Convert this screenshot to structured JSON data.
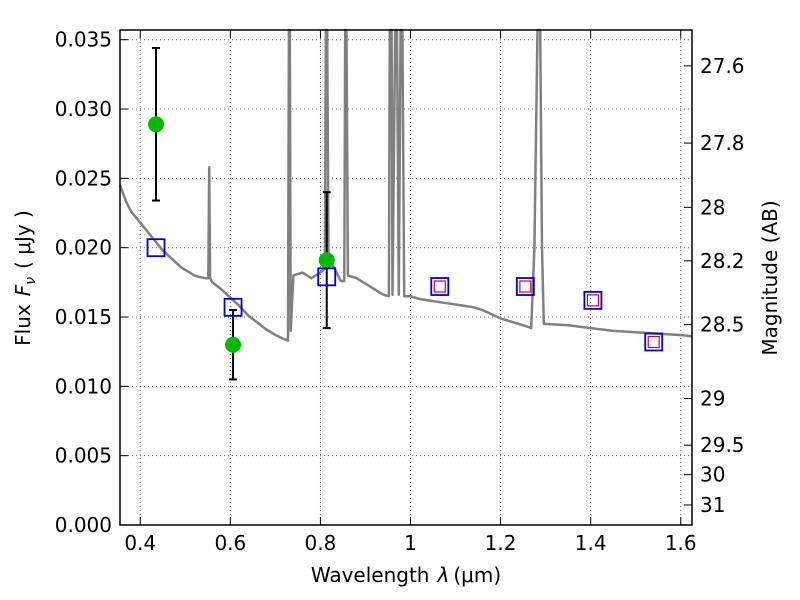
{
  "chart_data": {
    "type": "line",
    "xlabel": "Wavelength",
    "xlabel_symbol": "λ",
    "xlabel_unit": "(μm)",
    "ylabel": "Flux",
    "ylabel_symbol": "F",
    "ylabel_sub": "ν",
    "ylabel_unit": "( μJy )",
    "y2label": "Magnitude (AB)",
    "xlim": [
      0.355,
      1.625
    ],
    "ylim": [
      0.0,
      0.0357
    ],
    "grid": true,
    "x_ticks": [
      {
        "value": 0.4,
        "label": "0.4"
      },
      {
        "value": 0.6,
        "label": "0.6"
      },
      {
        "value": 0.8,
        "label": "0.8"
      },
      {
        "value": 1.0,
        "label": "1"
      },
      {
        "value": 1.2,
        "label": "1.2"
      },
      {
        "value": 1.4,
        "label": "1.4"
      },
      {
        "value": 1.6,
        "label": "1.6"
      }
    ],
    "y_ticks": [
      {
        "value": 0.0,
        "label": "0.000"
      },
      {
        "value": 0.005,
        "label": "0.005"
      },
      {
        "value": 0.01,
        "label": "0.010"
      },
      {
        "value": 0.015,
        "label": "0.015"
      },
      {
        "value": 0.02,
        "label": "0.020"
      },
      {
        "value": 0.025,
        "label": "0.025"
      },
      {
        "value": 0.03,
        "label": "0.030"
      },
      {
        "value": 0.035,
        "label": "0.035"
      }
    ],
    "y2_ticks": [
      {
        "value": 27.6,
        "label": "27.6"
      },
      {
        "value": 27.8,
        "label": "27.8"
      },
      {
        "value": 28.0,
        "label": "28"
      },
      {
        "value": 28.2,
        "label": "28.2"
      },
      {
        "value": 28.5,
        "label": "28.5"
      },
      {
        "value": 29.0,
        "label": "29"
      },
      {
        "value": 29.5,
        "label": "29.5"
      },
      {
        "value": 30.0,
        "label": "30"
      },
      {
        "value": 31.0,
        "label": "31"
      }
    ],
    "series": [
      {
        "name": "model spectrum",
        "kind": "line",
        "color": "#808080",
        "points": [
          [
            0.355,
            0.0245
          ],
          [
            0.37,
            0.0232
          ],
          [
            0.38,
            0.0226
          ],
          [
            0.39,
            0.0222
          ],
          [
            0.4,
            0.0218
          ],
          [
            0.41,
            0.0214
          ],
          [
            0.42,
            0.021
          ],
          [
            0.43,
            0.0206
          ],
          [
            0.44,
            0.0202
          ],
          [
            0.45,
            0.0198
          ],
          [
            0.46,
            0.0195
          ],
          [
            0.47,
            0.0192
          ],
          [
            0.48,
            0.0189
          ],
          [
            0.49,
            0.0186
          ],
          [
            0.5,
            0.0184
          ],
          [
            0.51,
            0.0182
          ],
          [
            0.52,
            0.018
          ],
          [
            0.53,
            0.0179
          ],
          [
            0.545,
            0.0178
          ],
          [
            0.551,
            0.0178
          ],
          [
            0.553,
            0.0258
          ],
          [
            0.555,
            0.0178
          ],
          [
            0.56,
            0.0175
          ],
          [
            0.58,
            0.017
          ],
          [
            0.6,
            0.0164
          ],
          [
            0.62,
            0.0158
          ],
          [
            0.64,
            0.0151
          ],
          [
            0.66,
            0.0146
          ],
          [
            0.68,
            0.0141
          ],
          [
            0.7,
            0.0137
          ],
          [
            0.72,
            0.0134
          ],
          [
            0.728,
            0.0133
          ],
          [
            0.73,
            0.0357
          ],
          [
            0.732,
            0.0357
          ],
          [
            0.734,
            0.014
          ],
          [
            0.74,
            0.018
          ],
          [
            0.76,
            0.0182
          ],
          [
            0.78,
            0.0178
          ],
          [
            0.8,
            0.0182
          ],
          [
            0.81,
            0.0185
          ],
          [
            0.812,
            0.0357
          ],
          [
            0.815,
            0.0357
          ],
          [
            0.818,
            0.019
          ],
          [
            0.83,
            0.0186
          ],
          [
            0.845,
            0.0176
          ],
          [
            0.853,
            0.0176
          ],
          [
            0.855,
            0.0357
          ],
          [
            0.858,
            0.0357
          ],
          [
            0.861,
            0.018
          ],
          [
            0.88,
            0.0178
          ],
          [
            0.9,
            0.0174
          ],
          [
            0.92,
            0.017
          ],
          [
            0.94,
            0.0166
          ],
          [
            0.952,
            0.0165
          ],
          [
            0.954,
            0.0357
          ],
          [
            0.958,
            0.0357
          ],
          [
            0.96,
            0.0166
          ],
          [
            0.966,
            0.0357
          ],
          [
            0.97,
            0.0357
          ],
          [
            0.974,
            0.0166
          ],
          [
            0.978,
            0.0357
          ],
          [
            0.982,
            0.0357
          ],
          [
            0.986,
            0.0165
          ],
          [
            1.0,
            0.0165
          ],
          [
            1.02,
            0.0163
          ],
          [
            1.04,
            0.0162
          ],
          [
            1.06,
            0.0161
          ],
          [
            1.08,
            0.016
          ],
          [
            1.1,
            0.0159
          ],
          [
            1.12,
            0.0158
          ],
          [
            1.14,
            0.0157
          ],
          [
            1.16,
            0.0155
          ],
          [
            1.18,
            0.0152
          ],
          [
            1.2,
            0.0149
          ],
          [
            1.22,
            0.0147
          ],
          [
            1.24,
            0.0145
          ],
          [
            1.26,
            0.0143
          ],
          [
            1.268,
            0.0142
          ],
          [
            1.275,
            0.02
          ],
          [
            1.282,
            0.0357
          ],
          [
            1.288,
            0.0357
          ],
          [
            1.292,
            0.02
          ],
          [
            1.296,
            0.0145
          ],
          [
            1.3,
            0.0145
          ],
          [
            1.35,
            0.0144
          ],
          [
            1.4,
            0.0142
          ],
          [
            1.45,
            0.014
          ],
          [
            1.5,
            0.0139
          ],
          [
            1.55,
            0.0138
          ],
          [
            1.6,
            0.0137
          ],
          [
            1.625,
            0.0136
          ]
        ]
      }
    ],
    "observed": [
      {
        "x": 0.435,
        "y": 0.0289,
        "yerr_low": 0.0234,
        "yerr_high": 0.0344
      },
      {
        "x": 0.606,
        "y": 0.013,
        "yerr_low": 0.0105,
        "yerr_high": 0.0155
      },
      {
        "x": 0.814,
        "y": 0.0191,
        "yerr_low": 0.0142,
        "yerr_high": 0.024
      }
    ],
    "model_photometry_blue": [
      {
        "x": 0.435,
        "y": 0.02
      },
      {
        "x": 0.606,
        "y": 0.0157
      },
      {
        "x": 0.814,
        "y": 0.0179
      },
      {
        "x": 1.065,
        "y": 0.0172
      },
      {
        "x": 1.255,
        "y": 0.0172
      },
      {
        "x": 1.405,
        "y": 0.0162
      },
      {
        "x": 1.54,
        "y": 0.0132
      }
    ],
    "model_photometry_red": [
      {
        "x": 1.065,
        "y": 0.0172
      },
      {
        "x": 1.255,
        "y": 0.0172
      },
      {
        "x": 1.405,
        "y": 0.0162
      },
      {
        "x": 1.54,
        "y": 0.0132
      }
    ],
    "colors": {
      "spectrum": "#808080",
      "observed": "#00bb00",
      "errorbar": "#000000",
      "blue_square": "#0000cc",
      "red_square": "#cc0044"
    }
  }
}
